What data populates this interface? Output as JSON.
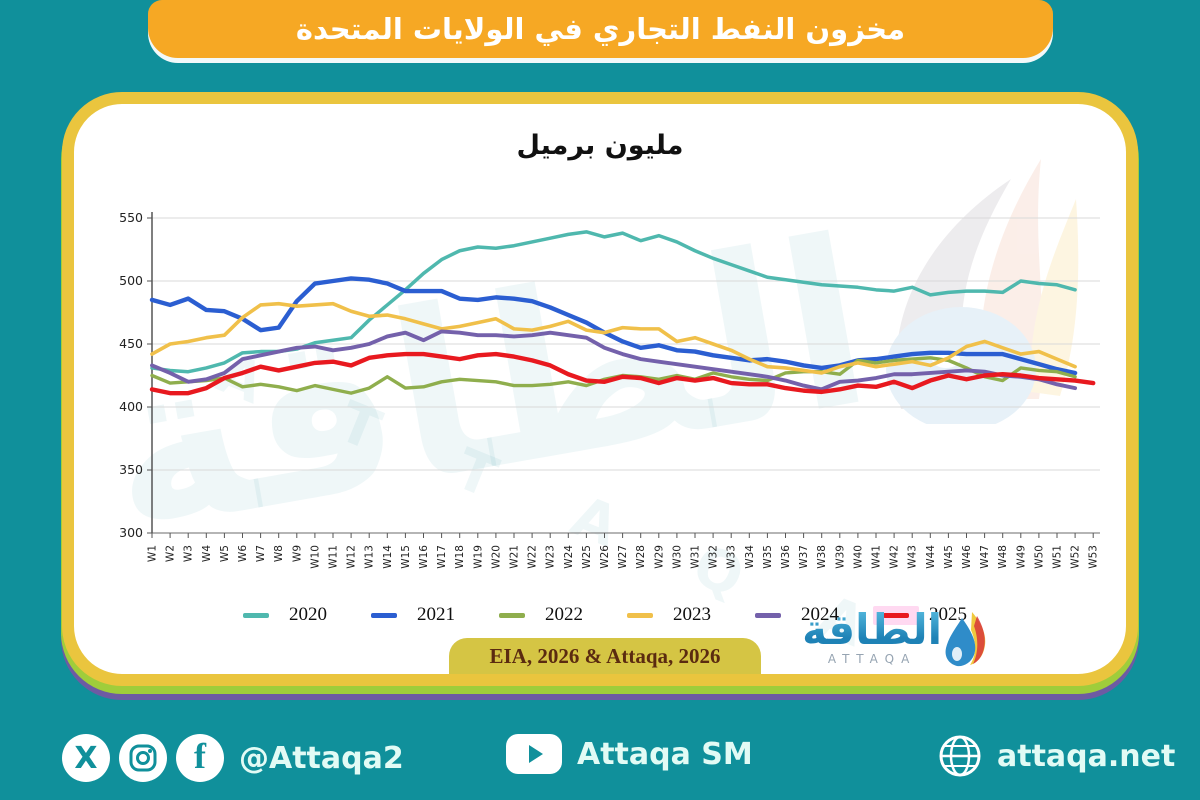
{
  "banner": {
    "title": "مخزون النفط التجاري في الولايات المتحدة"
  },
  "chart_data": {
    "type": "line",
    "title": "مليون برميل",
    "ylim": [
      300,
      550
    ],
    "ytick_step": 50,
    "grid": true,
    "legend_position": "bottom",
    "x_labels": [
      "W1",
      "W2",
      "W3",
      "W4",
      "W5",
      "W6",
      "W7",
      "W8",
      "W9",
      "W10",
      "W11",
      "W12",
      "W13",
      "W14",
      "W15",
      "W16",
      "W17",
      "W18",
      "W19",
      "W20",
      "W21",
      "W22",
      "W23",
      "W24",
      "W25",
      "W26",
      "W27",
      "W28",
      "W29",
      "W30",
      "W31",
      "W32",
      "W33",
      "W34",
      "W35",
      "W36",
      "W37",
      "W38",
      "W39",
      "W40",
      "W41",
      "W42",
      "W43",
      "W44",
      "W45",
      "W46",
      "W47",
      "W48",
      "W49",
      "W50",
      "W51",
      "W52",
      "W53"
    ],
    "series": [
      {
        "name": "2020",
        "color": "#4fb8ae",
        "values": [
          431,
          429,
          428,
          431,
          435,
          443,
          444,
          444,
          446,
          451,
          453,
          455,
          469,
          481,
          493,
          506,
          517,
          524,
          527,
          526,
          528,
          531,
          534,
          537,
          539,
          535,
          538,
          532,
          536,
          531,
          524,
          518,
          513,
          508,
          503,
          501,
          499,
          497,
          496,
          495,
          493,
          492,
          495,
          489,
          491,
          492,
          492,
          491,
          500,
          498,
          497,
          493
        ]
      },
      {
        "name": "2021",
        "color": "#2b5ed1",
        "values": [
          485,
          481,
          486,
          477,
          476,
          470,
          461,
          463,
          484,
          498,
          500,
          502,
          501,
          498,
          492,
          492,
          492,
          486,
          485,
          487,
          486,
          484,
          479,
          473,
          467,
          459,
          452,
          447,
          449,
          445,
          444,
          441,
          439,
          437,
          438,
          436,
          433,
          431,
          433,
          437,
          438,
          440,
          442,
          443,
          443,
          442,
          442,
          442,
          438,
          434,
          430,
          427
        ]
      },
      {
        "name": "2022",
        "color": "#8fae4d",
        "values": [
          425,
          419,
          420,
          421,
          423,
          416,
          418,
          416,
          413,
          417,
          414,
          411,
          415,
          424,
          415,
          416,
          420,
          422,
          421,
          420,
          417,
          417,
          418,
          420,
          417,
          422,
          425,
          424,
          422,
          425,
          422,
          427,
          424,
          422,
          421,
          427,
          428,
          428,
          426,
          437,
          435,
          437,
          438,
          439,
          437,
          431,
          424,
          421,
          431,
          429,
          428,
          424
        ]
      },
      {
        "name": "2023",
        "color": "#f0c04a",
        "values": [
          442,
          450,
          452,
          455,
          457,
          471,
          481,
          482,
          480,
          481,
          482,
          476,
          472,
          473,
          470,
          466,
          462,
          464,
          467,
          470,
          462,
          461,
          464,
          468,
          461,
          459,
          463,
          462,
          462,
          452,
          455,
          450,
          445,
          438,
          432,
          431,
          429,
          427,
          432,
          435,
          432,
          434,
          436,
          433,
          439,
          448,
          452,
          447,
          442,
          444,
          438,
          432
        ]
      },
      {
        "name": "2024",
        "color": "#7461ab",
        "values": [
          433,
          427,
          420,
          422,
          427,
          438,
          441,
          444,
          447,
          448,
          445,
          447,
          450,
          456,
          459,
          453,
          460,
          459,
          457,
          457,
          456,
          457,
          459,
          457,
          455,
          447,
          442,
          438,
          436,
          434,
          432,
          430,
          428,
          426,
          424,
          421,
          417,
          414,
          420,
          421,
          423,
          426,
          426,
          427,
          428,
          429,
          428,
          425,
          424,
          422,
          418,
          415
        ]
      },
      {
        "name": "2025",
        "color": "#e8191f",
        "highlighted": true,
        "values": [
          414,
          411,
          411,
          415,
          423,
          427,
          432,
          429,
          432,
          435,
          436,
          433,
          439,
          441,
          442,
          442,
          440,
          438,
          441,
          442,
          440,
          437,
          433,
          426,
          421,
          420,
          424,
          423,
          419,
          423,
          421,
          423,
          419,
          418,
          418,
          415,
          413,
          412,
          414,
          417,
          416,
          420,
          415,
          421,
          425,
          422,
          425,
          426,
          425,
          423,
          422,
          421,
          419
        ]
      }
    ]
  },
  "source": {
    "label": "EIA, 2026 & Attaqa, 2026"
  },
  "logo": {
    "arabic": "الطاقة",
    "latin": "ATTAQA"
  },
  "watermark": {
    "arabic": "الطاقة",
    "latin": "A T T A Q A"
  },
  "footer": {
    "social_handle": "@Attaqa2",
    "youtube_label": "Attaqa SM",
    "website": "attaqa.net"
  },
  "colors": {
    "background": "#10909b",
    "banner": "#f6a824",
    "card_border": "#eac53e",
    "card_shadow_green": "#9fcd3b",
    "card_shadow_purple": "#6d5ba3",
    "source_box": "#d5c544",
    "legend_highlight": "#ffd9f1",
    "grid_line": "#d9d9d9"
  }
}
